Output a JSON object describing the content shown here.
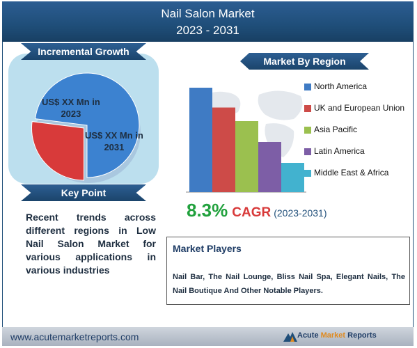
{
  "header": {
    "title": "Nail Salon Market",
    "years": "2023 - 2031"
  },
  "incremental": {
    "heading": "Incremental Growth",
    "label_2023": "US$ XX Mn in 2023",
    "label_2023_line1": "US$ XX Mn in",
    "label_2023_line2": "2023",
    "label_2031_line1": "US$ XX Mn in",
    "label_2031_line2": "2031"
  },
  "key_point": {
    "heading": "Key Point",
    "text": "Recent trends across different regions in Low Nail Salon Market for various applications in various industries"
  },
  "region": {
    "heading": "Market By Region"
  },
  "cagr": {
    "value": "8.3%",
    "word": "CAGR",
    "years": "(2023-2031)"
  },
  "players": {
    "heading": "Market Players",
    "text": "Nail Bar, The Nail Lounge, Bliss Nail Spa, Elegant Nails, The Nail Boutique And Other Notable Players."
  },
  "footer": {
    "url": "www.acutemarketreports.com",
    "brand_1": "Acute",
    "brand_2": "Market",
    "brand_3": "Reports"
  },
  "chart_data": [
    {
      "type": "pie",
      "categories": [
        "2023",
        "2031"
      ],
      "values": [
        27,
        73
      ],
      "colors": [
        "#d83a3a",
        "#3c82d0"
      ]
    },
    {
      "type": "bar",
      "categories": [
        "North America",
        "UK and European Union",
        "Asia Pacific",
        "Latin America",
        "Middle East & Africa"
      ],
      "values": [
        100,
        81,
        68,
        48,
        28
      ],
      "colors": [
        "#3f7bc4",
        "#cd4b48",
        "#9bc04f",
        "#7d5ea6",
        "#42b2cf"
      ],
      "ylim": [
        0,
        100
      ]
    }
  ]
}
